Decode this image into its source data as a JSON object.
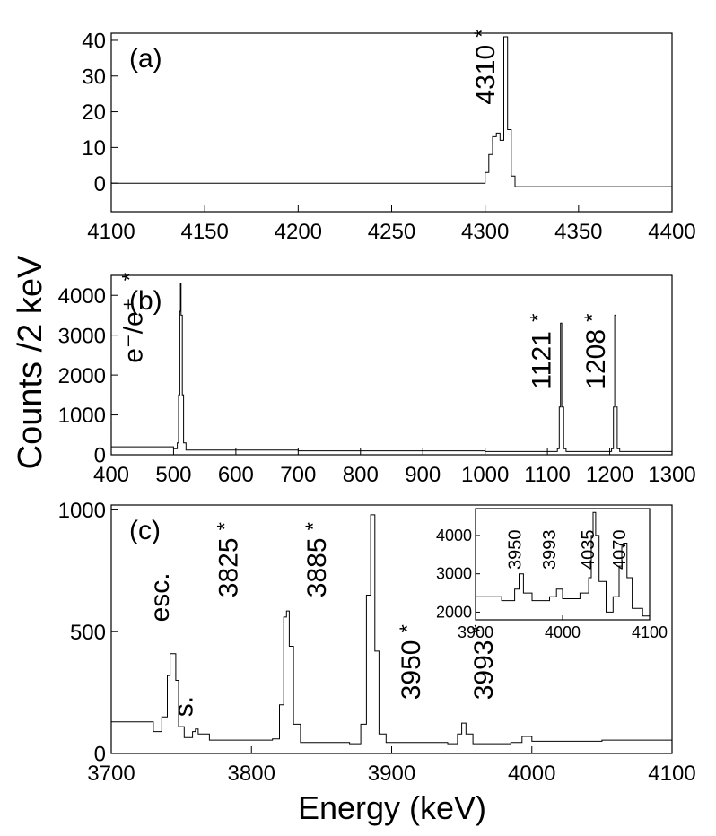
{
  "figure": {
    "ylabel": "Counts /2 keV",
    "xlabel": "Energy (keV)"
  },
  "chart_data": [
    {
      "id": "a",
      "type": "line",
      "panel_label": "(a)",
      "xlim": [
        4100,
        4400
      ],
      "ylim": [
        -8,
        42
      ],
      "x_ticks": [
        4100,
        4150,
        4200,
        4250,
        4300,
        4350,
        4400
      ],
      "y_ticks": [
        0,
        10,
        20,
        30,
        40
      ],
      "series": [
        {
          "x": [
            4100,
            4295,
            4300,
            4302,
            4304,
            4306,
            4308,
            4310,
            4312,
            4314,
            4316,
            4400
          ],
          "y": [
            0,
            0,
            3,
            8,
            13,
            14,
            12,
            41,
            15,
            2,
            -1,
            0
          ]
        }
      ],
      "annotations": [
        {
          "text": "4310",
          "x": 4305,
          "y": 22,
          "star": true
        }
      ]
    },
    {
      "id": "b",
      "type": "line",
      "panel_label": "(b)",
      "xlim": [
        400,
        1300
      ],
      "ylim": [
        0,
        4500
      ],
      "x_ticks": [
        400,
        500,
        600,
        700,
        800,
        900,
        1000,
        1100,
        1200,
        1300
      ],
      "y_ticks": [
        0,
        1000,
        2000,
        3000,
        4000
      ],
      "series": [
        {
          "x": [
            400,
            500,
            506,
            508,
            510,
            511,
            512,
            514,
            516,
            520,
            700,
            1000,
            1112,
            1116,
            1119,
            1121,
            1123,
            1126,
            1130,
            1198,
            1203,
            1206,
            1208,
            1210,
            1212,
            1216,
            1300
          ],
          "y": [
            200,
            150,
            300,
            1500,
            3600,
            4300,
            3500,
            1500,
            300,
            120,
            100,
            80,
            80,
            150,
            1200,
            3300,
            1200,
            150,
            80,
            80,
            150,
            1200,
            3500,
            1200,
            150,
            80,
            80
          ]
        }
      ],
      "annotations": [
        {
          "text": "e⁻/e⁺",
          "x": 450,
          "y": 2300,
          "star": true
        },
        {
          "text": "1121",
          "x": 1105,
          "y": 1650,
          "star": true
        },
        {
          "text": "1208",
          "x": 1192,
          "y": 1650,
          "star": true
        }
      ]
    },
    {
      "id": "c",
      "type": "line",
      "panel_label": "(c)",
      "xlim": [
        3700,
        4100
      ],
      "ylim": [
        0,
        1020
      ],
      "x_ticks": [
        3700,
        3800,
        3900,
        4000,
        4100
      ],
      "y_ticks": [
        0,
        500,
        1000
      ],
      "series": [
        {
          "x": [
            3700,
            3730,
            3736,
            3740,
            3742,
            3744,
            3746,
            3748,
            3752,
            3758,
            3760,
            3762,
            3770,
            3815,
            3820,
            3823,
            3825,
            3827,
            3830,
            3835,
            3870,
            3878,
            3882,
            3885,
            3888,
            3891,
            3896,
            3940,
            3947,
            3950,
            3953,
            3958,
            3985,
            3993,
            4000,
            4050,
            4100
          ],
          "y": [
            130,
            90,
            150,
            320,
            410,
            410,
            300,
            110,
            65,
            90,
            100,
            80,
            55,
            60,
            200,
            560,
            585,
            440,
            120,
            45,
            40,
            120,
            650,
            980,
            420,
            80,
            45,
            40,
            80,
            125,
            80,
            40,
            45,
            70,
            50,
            55,
            40
          ]
        }
      ],
      "annotations": [
        {
          "text": "esc.",
          "x": 3741,
          "y": 540,
          "star": false
        },
        {
          "text": "s.",
          "x": 3758,
          "y": 150,
          "star": false
        },
        {
          "text": "3825",
          "x": 3790,
          "y": 640,
          "star": true
        },
        {
          "text": "3885",
          "x": 3853,
          "y": 640,
          "star": true
        },
        {
          "text": "3950",
          "x": 3920,
          "y": 220,
          "star": true
        },
        {
          "text": "3993",
          "x": 3972,
          "y": 220,
          "star": true
        }
      ],
      "inset": {
        "type": "line",
        "xlim": [
          3900,
          4100
        ],
        "ylim": [
          1800,
          4700
        ],
        "x_ticks": [
          3900,
          4000,
          4100
        ],
        "y_ticks": [
          2000,
          3000,
          4000
        ],
        "series": [
          {
            "x": [
              3900,
              3930,
              3945,
              3950,
              3955,
              3965,
              3985,
              3993,
              4000,
              4020,
              4030,
              4033,
              4035,
              4038,
              4042,
              4050,
              4058,
              4065,
              4068,
              4070,
              4074,
              4080,
              4092,
              4100
            ],
            "y": [
              2400,
              2300,
              2600,
              3000,
              2500,
              2300,
              2400,
              2600,
              2350,
              2500,
              2900,
              4000,
              4600,
              4000,
              2800,
              2000,
              2400,
              3200,
              3700,
              3800,
              2900,
              2100,
              1900,
              1900
            ]
          }
        ],
        "labels": [
          "3950",
          "3993",
          "4035",
          "4070"
        ]
      }
    }
  ]
}
